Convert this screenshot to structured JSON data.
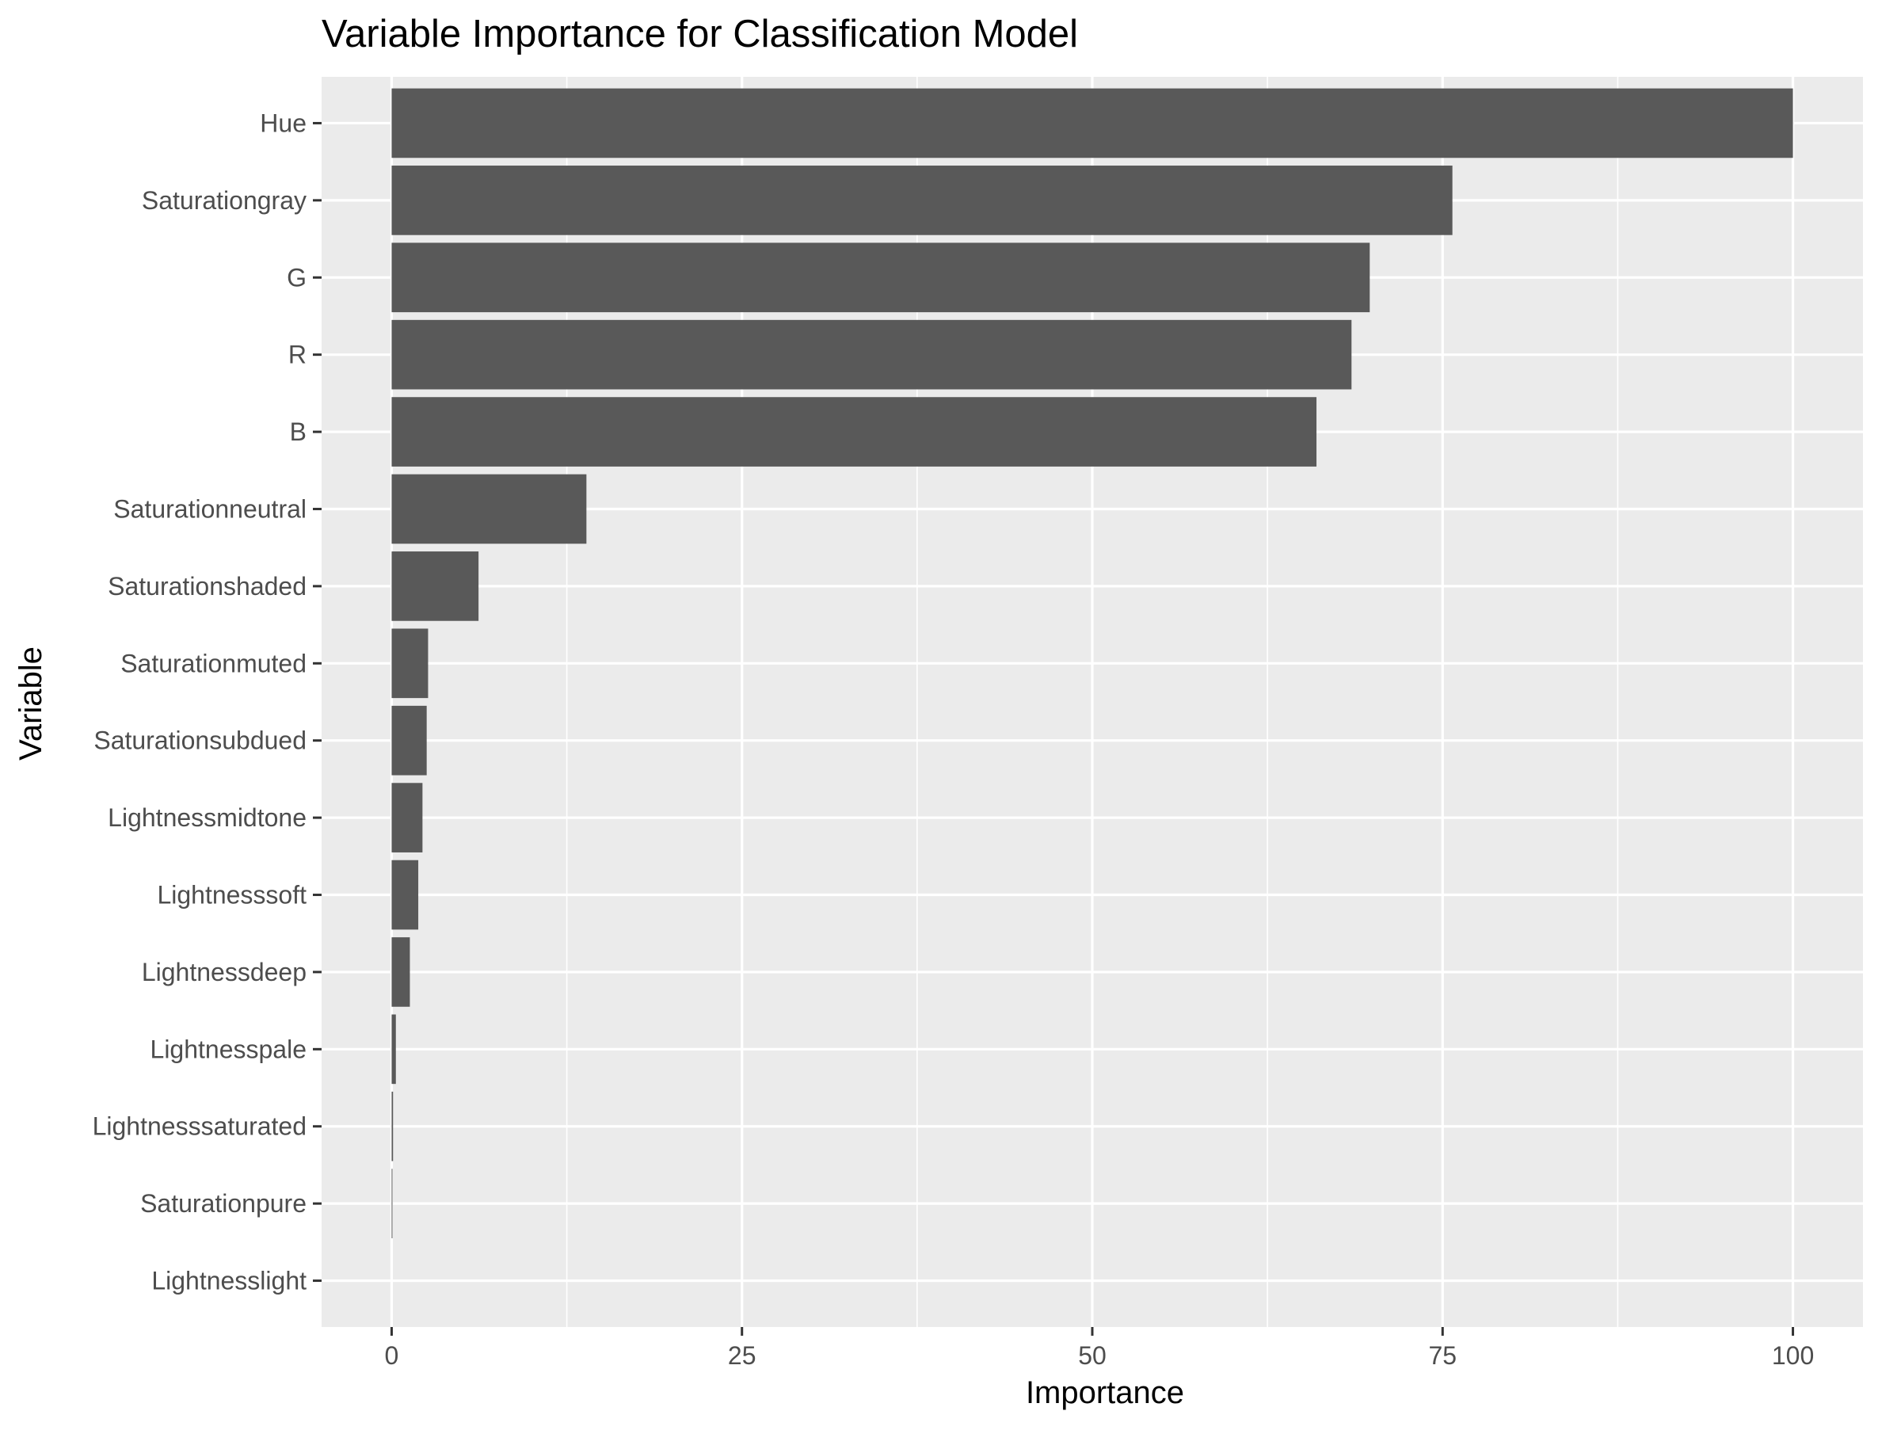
{
  "chart_data": {
    "type": "bar",
    "orientation": "horizontal",
    "title": "Variable Importance for Classification Model",
    "xlabel": "Importance",
    "ylabel": "Variable",
    "categories": [
      "Hue",
      "Saturationgray",
      "G",
      "R",
      "B",
      "Saturationneutral",
      "Saturationshaded",
      "Saturationmuted",
      "Saturationsubdued",
      "Lightnessmidtone",
      "Lightnesssoft",
      "Lightnessdeep",
      "Lightnesspale",
      "Lightnesssaturated",
      "Saturationpure",
      "Lightnesslight"
    ],
    "values": [
      100,
      75.7,
      69.8,
      68.5,
      66.0,
      13.9,
      6.2,
      2.6,
      2.5,
      2.2,
      1.9,
      1.3,
      0.3,
      0.1,
      0.05,
      0
    ],
    "xticks": [
      0,
      25,
      50,
      75,
      100
    ],
    "xlim": [
      -5,
      105
    ],
    "grid": true,
    "legend": "none",
    "colors": {
      "bar": "#595959",
      "panel": "#ebebeb",
      "grid": "#ffffff",
      "tick_text": "#4d4d4d",
      "tick_mark": "#333333"
    }
  }
}
